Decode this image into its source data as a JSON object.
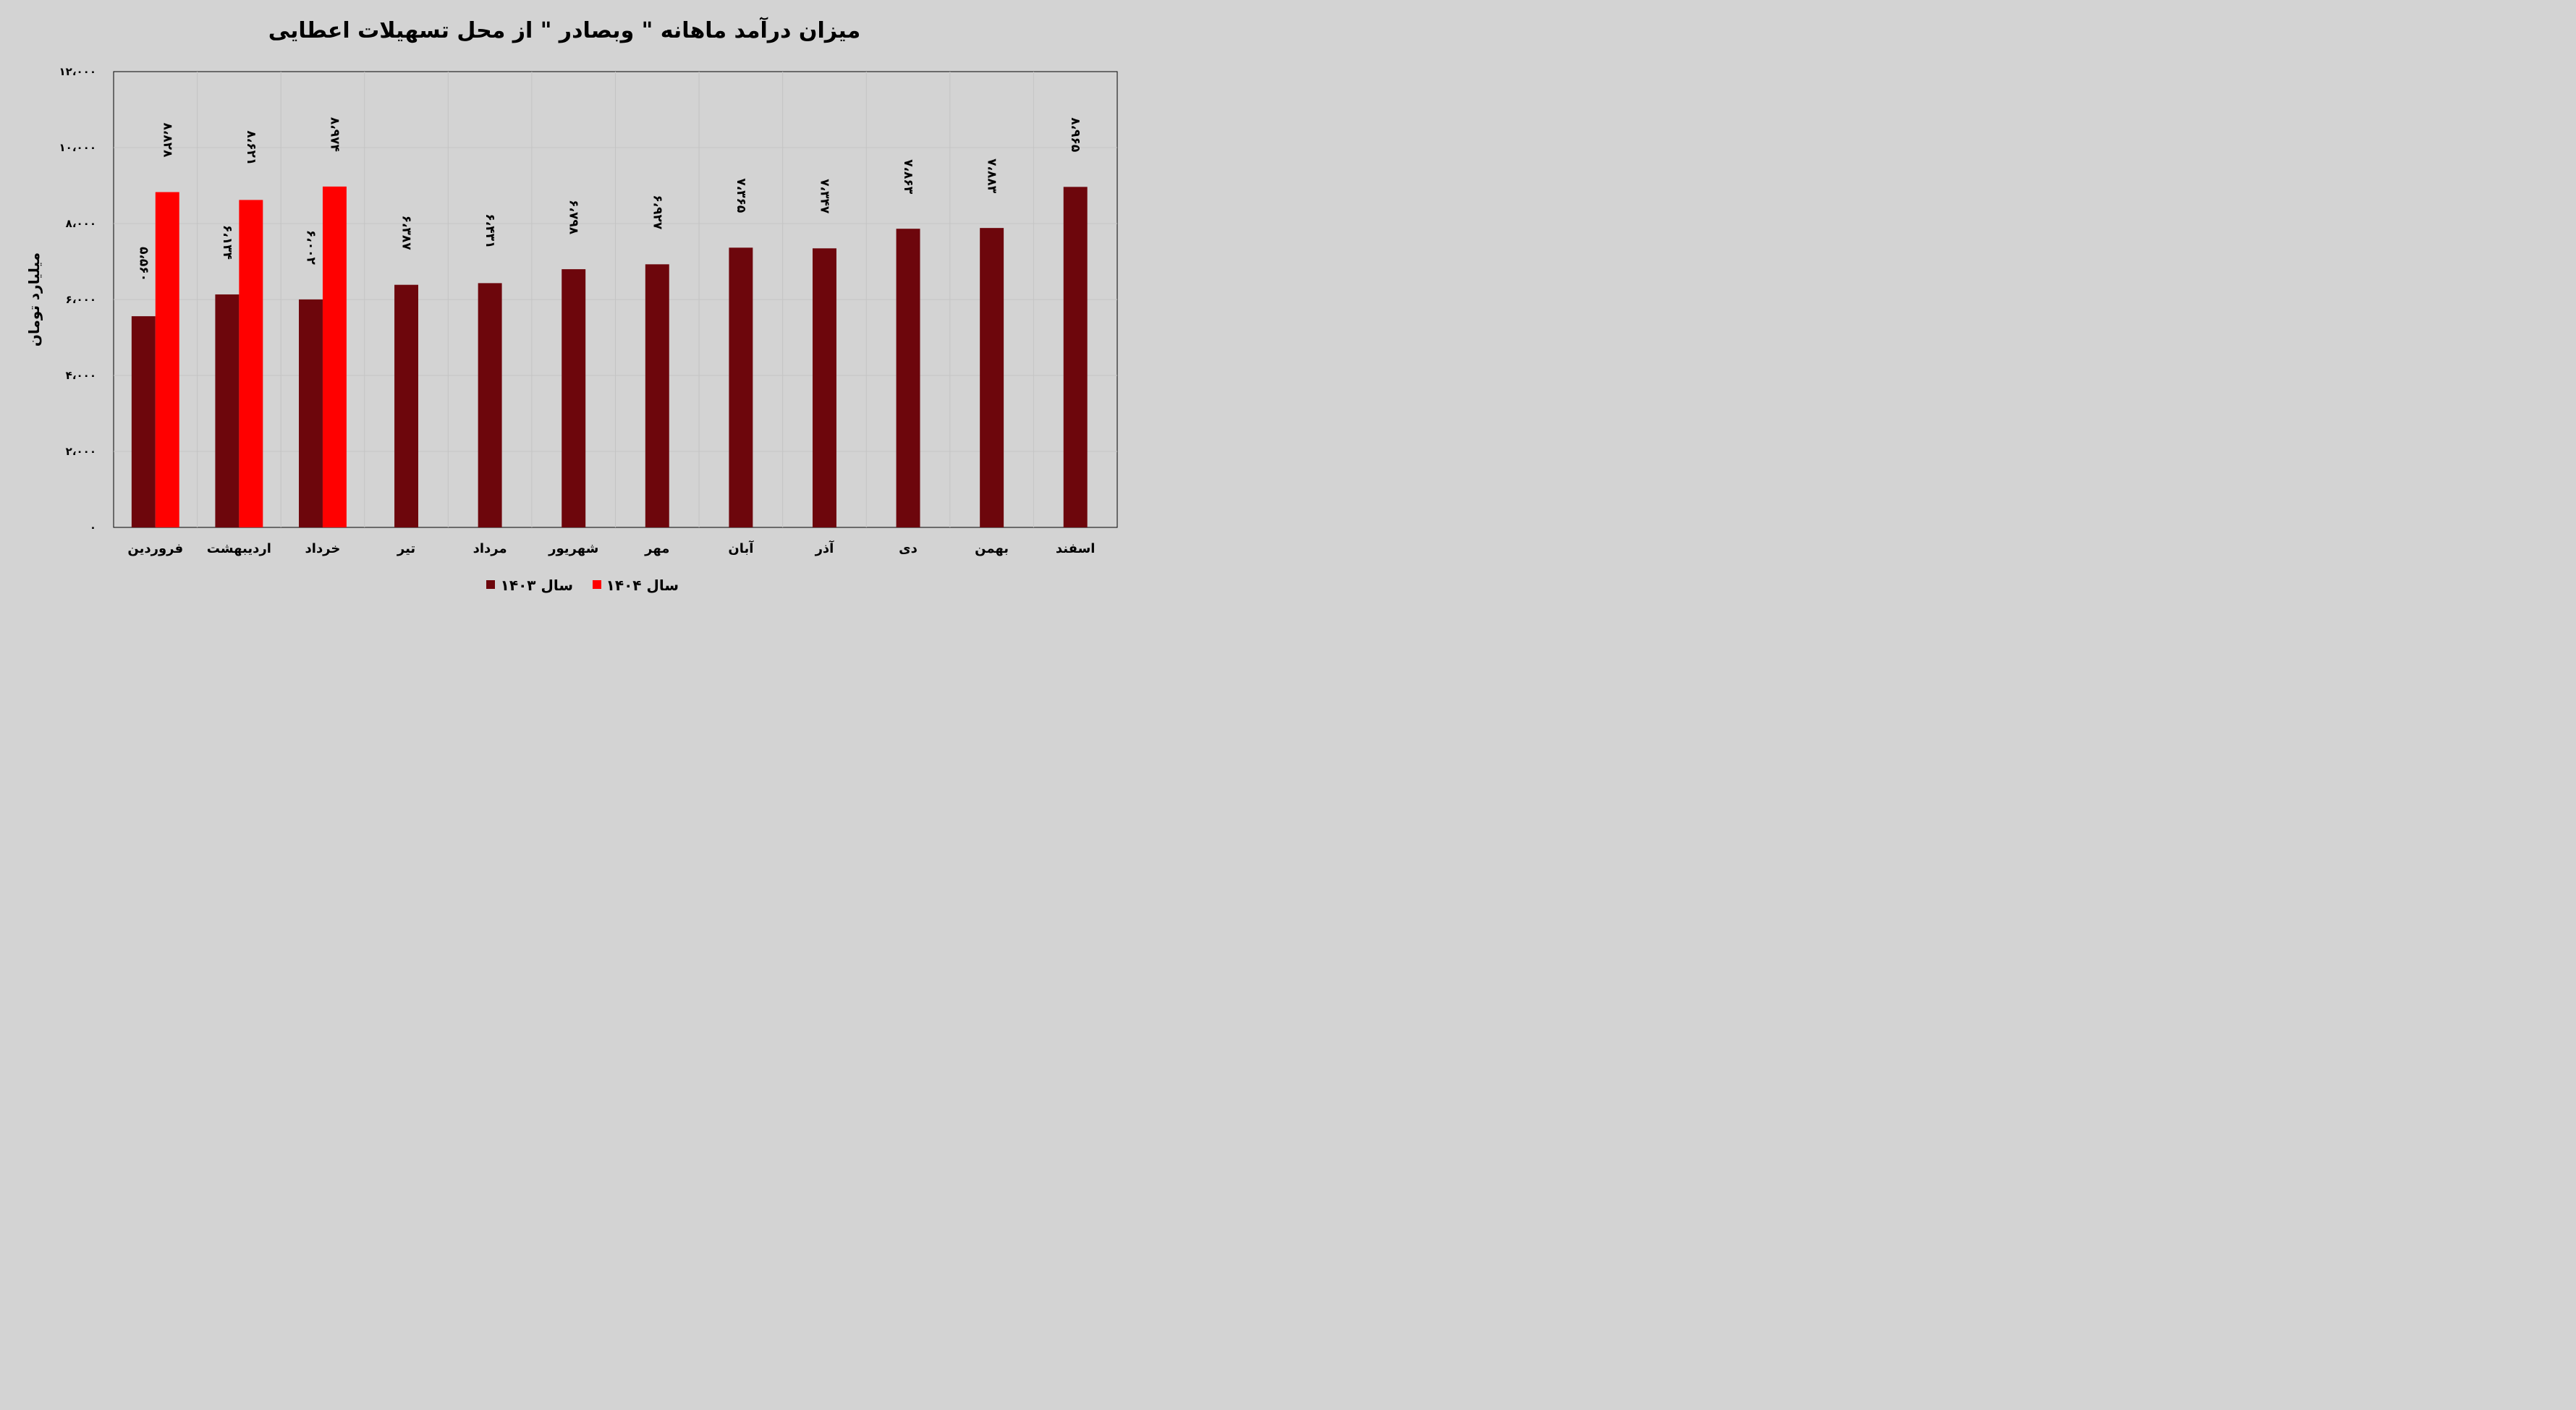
{
  "chart_data": {
    "type": "bar",
    "title": "میزان درآمد ماهانه \" وبصادر \" از محل تسهیلات اعطایی",
    "ylabel": "میلیارد تومان",
    "xlabel": "",
    "ylim": [
      0,
      12000
    ],
    "yticks": [
      0,
      2000,
      4000,
      6000,
      8000,
      10000,
      12000
    ],
    "ytick_labels": [
      "۰",
      "۲،۰۰۰",
      "۴،۰۰۰",
      "۶،۰۰۰",
      "۸،۰۰۰",
      "۱۰،۰۰۰",
      "۱۲،۰۰۰"
    ],
    "grid": true,
    "legend_position": "bottom",
    "categories": [
      "فروردین",
      "اردیبهشت",
      "خرداد",
      "تیر",
      "مرداد",
      "شهریور",
      "مهر",
      "آبان",
      "آذر",
      "دی",
      "بهمن",
      "اسفند"
    ],
    "series": [
      {
        "name": "سال ۱۴۰۳",
        "color": "#6d060c",
        "values": [
          5560,
          6134,
          6002,
          6387,
          6431,
          6798,
          6927,
          7365,
          7347,
          7863,
          7883,
          8965
        ],
        "labels": [
          "۵،۵۶۰",
          "۶،۱۳۴",
          "۶،۰۰۲",
          "۶،۳۸۷",
          "۶،۴۳۱",
          "۶،۷۹۸",
          "۶،۹۲۷",
          "۷،۳۶۵",
          "۷،۳۴۷",
          "۷،۸۶۳",
          "۷،۸۸۳",
          "۸،۹۶۵"
        ]
      },
      {
        "name": "سال ۱۴۰۴",
        "color": "#ff0000",
        "values": [
          8828,
          8621,
          8974,
          null,
          null,
          null,
          null,
          null,
          null,
          null,
          null,
          null
        ],
        "labels": [
          "۸،۸۲۸",
          "۸،۶۲۱",
          "۸،۹۷۴",
          null,
          null,
          null,
          null,
          null,
          null,
          null,
          null,
          null
        ]
      }
    ]
  }
}
